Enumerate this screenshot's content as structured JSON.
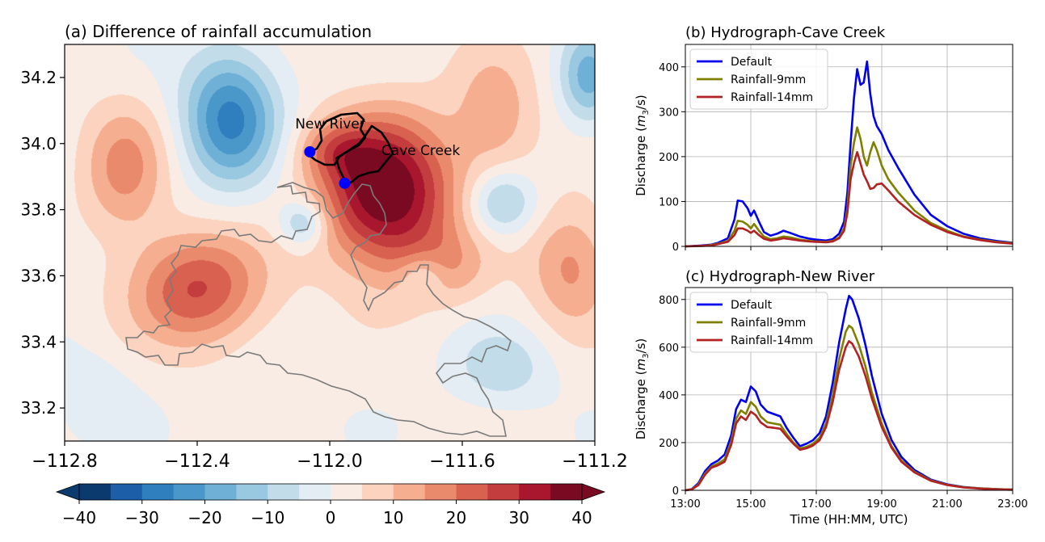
{
  "chart_data": [
    {
      "type": "heatmap",
      "title": "(a) Difference of rainfall accumulation",
      "x_ticks": [
        "−112.8",
        "−112.4",
        "−112.0",
        "−111.6",
        "−111.2"
      ],
      "y_ticks": [
        "33.2",
        "33.4",
        "33.6",
        "33.8",
        "34.0",
        "34.2"
      ],
      "xlim": [
        -112.8,
        -111.2
      ],
      "ylim": [
        33.1,
        34.3
      ],
      "colorbar": {
        "ticks": [
          "−40",
          "−30",
          "−20",
          "−10",
          "0",
          "10",
          "20",
          "30",
          "40"
        ],
        "range": [
          -40,
          40
        ],
        "levels": [
          -40,
          -35,
          -30,
          -25,
          -20,
          -15,
          -10,
          -5,
          0,
          5,
          10,
          15,
          20,
          25,
          30,
          35,
          40
        ],
        "colors": [
          "#0b3a6e",
          "#1c5ea7",
          "#2f7ebd",
          "#4a98c9",
          "#6fb0d6",
          "#99c8e1",
          "#c3dcea",
          "#e3edf3",
          "#f8ece4",
          "#fbd3bf",
          "#f5ae90",
          "#ea8a6d",
          "#d96150",
          "#c33c3e",
          "#a8172e",
          "#7a0a22"
        ]
      },
      "annotations": [
        {
          "text": "New River",
          "lon": -112.08,
          "lat": 34.06
        },
        {
          "text": "Cave Creek",
          "lon": -111.82,
          "lat": 33.98
        }
      ],
      "outlet_points": [
        {
          "name": "New River outlet",
          "lon": -112.06,
          "lat": 33.975
        },
        {
          "name": "Cave Creek outlet",
          "lon": -111.955,
          "lat": 33.88
        }
      ],
      "anomalies": [
        {
          "lon": -111.83,
          "lat": 33.85,
          "value": 40,
          "sx": 0.14,
          "sy": 0.16
        },
        {
          "lon": -111.98,
          "lat": 33.98,
          "value": 12,
          "sx": 0.08,
          "sy": 0.06
        },
        {
          "lon": -112.4,
          "lat": 33.56,
          "value": 24,
          "sx": 0.14,
          "sy": 0.12
        },
        {
          "lon": -112.62,
          "lat": 33.92,
          "value": 15,
          "sx": 0.09,
          "sy": 0.14
        },
        {
          "lon": -111.5,
          "lat": 34.08,
          "value": 12,
          "sx": 0.09,
          "sy": 0.14
        },
        {
          "lon": -111.27,
          "lat": 33.63,
          "value": 15,
          "sx": 0.09,
          "sy": 0.13
        },
        {
          "lon": -111.66,
          "lat": 33.62,
          "value": 10,
          "sx": 0.1,
          "sy": 0.08
        },
        {
          "lon": -112.3,
          "lat": 34.08,
          "value": -28,
          "sx": 0.1,
          "sy": 0.14
        },
        {
          "lon": -112.08,
          "lat": 33.76,
          "value": -16,
          "sx": 0.05,
          "sy": 0.05
        },
        {
          "lon": -111.48,
          "lat": 33.82,
          "value": -16,
          "sx": 0.07,
          "sy": 0.07
        },
        {
          "lon": -111.22,
          "lat": 34.2,
          "value": -18,
          "sx": 0.06,
          "sy": 0.1
        },
        {
          "lon": -111.72,
          "lat": 33.6,
          "value": -11,
          "sx": 0.05,
          "sy": 0.05
        },
        {
          "lon": -111.48,
          "lat": 33.32,
          "value": -10,
          "sx": 0.1,
          "sy": 0.08
        },
        {
          "lon": -112.72,
          "lat": 33.25,
          "value": -5,
          "sx": 0.1,
          "sy": 0.1
        }
      ]
    },
    {
      "type": "line",
      "title": "(b) Hydrograph-Cave Creek",
      "xlabel": "",
      "ylabel": "Discharge (m3/s)",
      "ylabel_parts": {
        "pre": "Discharge (",
        "var": "m",
        "sub": "3",
        "post": "/s)"
      },
      "xlim": [
        13,
        23
      ],
      "ylim": [
        0,
        450
      ],
      "yticks": [
        0,
        100,
        200,
        300,
        400
      ],
      "x_ticks": [
        13,
        15,
        17,
        19,
        21,
        23
      ],
      "grid": true,
      "legend": "top-left",
      "x": [
        13,
        13.5,
        13.8,
        14.0,
        14.3,
        14.5,
        14.6,
        14.75,
        14.9,
        15.0,
        15.1,
        15.25,
        15.4,
        15.6,
        15.8,
        16.0,
        16.2,
        16.5,
        16.8,
        17.0,
        17.3,
        17.5,
        17.7,
        17.85,
        17.95,
        18.05,
        18.15,
        18.25,
        18.35,
        18.45,
        18.55,
        18.65,
        18.75,
        18.85,
        19.0,
        19.2,
        19.5,
        20.0,
        20.5,
        21.0,
        21.5,
        22.0,
        22.5,
        23.0
      ],
      "series": [
        {
          "name": "Default",
          "color": "#0000ee",
          "values": [
            0,
            2,
            4,
            8,
            18,
            60,
            102,
            100,
            85,
            68,
            80,
            55,
            32,
            24,
            28,
            35,
            30,
            22,
            17,
            15,
            13,
            16,
            28,
            55,
            120,
            230,
            330,
            395,
            360,
            365,
            412,
            340,
            290,
            268,
            250,
            215,
            175,
            115,
            70,
            45,
            28,
            18,
            12,
            8
          ]
        },
        {
          "name": "Rainfall-9mm",
          "color": "#808000",
          "values": [
            0,
            1,
            3,
            6,
            12,
            35,
            57,
            55,
            48,
            40,
            50,
            35,
            22,
            16,
            18,
            22,
            20,
            15,
            12,
            11,
            10,
            12,
            20,
            40,
            85,
            180,
            230,
            265,
            240,
            200,
            180,
            210,
            232,
            215,
            180,
            150,
            120,
            80,
            52,
            35,
            22,
            15,
            10,
            7
          ]
        },
        {
          "name": "Rainfall-14mm",
          "color": "#b22222",
          "values": [
            0,
            1,
            2,
            5,
            10,
            25,
            40,
            40,
            35,
            30,
            35,
            25,
            17,
            13,
            15,
            18,
            16,
            13,
            11,
            10,
            9,
            11,
            18,
            35,
            75,
            150,
            185,
            210,
            185,
            160,
            145,
            128,
            130,
            138,
            140,
            125,
            100,
            70,
            48,
            32,
            21,
            14,
            9,
            6
          ]
        }
      ]
    },
    {
      "type": "line",
      "title": "(c) Hydrograph-New River",
      "xlabel": "Time (HH:MM, UTC)",
      "ylabel": "Discharge (m3/s)",
      "ylabel_parts": {
        "pre": "Discharge (",
        "var": "m",
        "sub": "3",
        "post": "/s)"
      },
      "xlim": [
        13,
        23
      ],
      "ylim": [
        0,
        850
      ],
      "yticks": [
        0,
        200,
        400,
        600,
        800
      ],
      "x_ticks": [
        13,
        15,
        17,
        19,
        21,
        23
      ],
      "x_tick_labels": [
        "13:00",
        "15:00",
        "17:00",
        "19:00",
        "21:00",
        "23:00"
      ],
      "grid": true,
      "legend": "top-left",
      "x": [
        13,
        13.2,
        13.4,
        13.6,
        13.8,
        14.0,
        14.2,
        14.4,
        14.55,
        14.7,
        14.85,
        15.0,
        15.15,
        15.3,
        15.5,
        15.7,
        15.9,
        16.1,
        16.3,
        16.5,
        16.7,
        16.9,
        17.1,
        17.3,
        17.5,
        17.7,
        17.9,
        18.0,
        18.1,
        18.3,
        18.5,
        18.7,
        19.0,
        19.3,
        19.6,
        20.0,
        20.5,
        21.0,
        21.5,
        22.0,
        22.5,
        23.0
      ],
      "series": [
        {
          "name": "Default",
          "color": "#0000ee",
          "values": [
            0,
            5,
            30,
            80,
            110,
            125,
            150,
            230,
            340,
            380,
            370,
            435,
            415,
            360,
            330,
            320,
            310,
            260,
            220,
            185,
            195,
            210,
            240,
            310,
            450,
            620,
            760,
            815,
            800,
            720,
            610,
            480,
            320,
            210,
            140,
            85,
            45,
            25,
            14,
            8,
            5,
            3
          ]
        },
        {
          "name": "Rainfall-9mm",
          "color": "#808000",
          "values": [
            0,
            4,
            25,
            70,
            100,
            112,
            130,
            205,
            300,
            335,
            320,
            370,
            350,
            310,
            285,
            280,
            275,
            235,
            200,
            175,
            182,
            195,
            220,
            280,
            400,
            550,
            665,
            690,
            680,
            610,
            520,
            410,
            280,
            185,
            125,
            78,
            42,
            23,
            13,
            8,
            5,
            3
          ]
        },
        {
          "name": "Rainfall-14mm",
          "color": "#b22222",
          "values": [
            0,
            4,
            22,
            65,
            95,
            105,
            120,
            190,
            280,
            310,
            295,
            330,
            315,
            285,
            265,
            262,
            258,
            225,
            195,
            170,
            176,
            188,
            210,
            265,
            370,
            505,
            600,
            625,
            615,
            560,
            480,
            385,
            265,
            178,
            120,
            75,
            40,
            22,
            12,
            7,
            4,
            2
          ]
        }
      ]
    }
  ]
}
